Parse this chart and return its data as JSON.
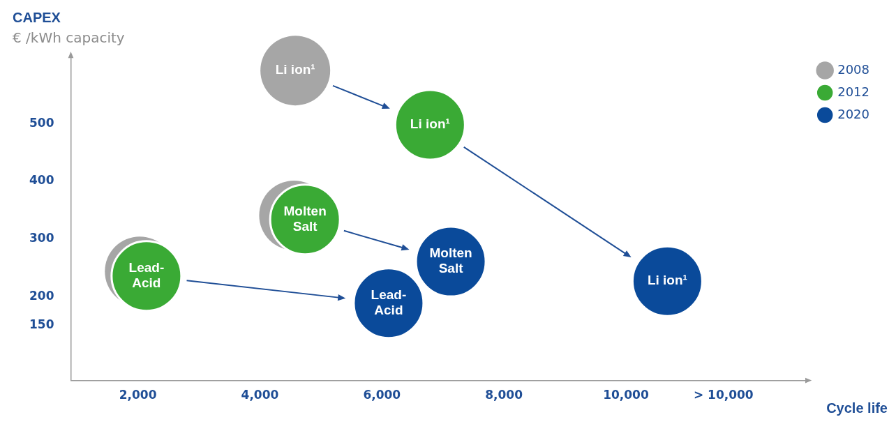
{
  "chart_data": {
    "type": "bubble",
    "ylabel": "CAPEX",
    "xlabel": "Cycle life",
    "annotations": [
      "€ /kWh capacity",
      {
        "text": "Li ion¹",
        "x": 4580,
        "y": 592
      },
      {
        "text": "Li ion¹",
        "x": 6790,
        "y": 498
      },
      {
        "text": "Molten Salt",
        "x": 4740,
        "y": 334
      },
      {
        "text": "Lead-Acid",
        "x": 2140,
        "y": 236
      },
      {
        "text": "Li ion¹",
        "x": 10680,
        "y": 227
      },
      {
        "text": "Molten Salt",
        "x": 7130,
        "y": 261
      },
      {
        "text": "Lead-Acid",
        "x": 6110,
        "y": 189
      }
    ],
    "series": [
      {
        "name": "2008",
        "color": "#a6a6a6",
        "x": [
          4580,
          4560,
          2030
        ],
        "values": [
          592,
          341,
          244
        ],
        "sizes": [
          1,
          1,
          1
        ]
      },
      {
        "name": "2012",
        "color": "#3aaa35",
        "x": [
          6790,
          4740,
          2140
        ],
        "values": [
          498,
          334,
          236
        ],
        "sizes": [
          1,
          1,
          1
        ]
      },
      {
        "name": "2020",
        "color": "#0a4a9a",
        "x": [
          10680,
          7130,
          6110
        ],
        "values": [
          227,
          261,
          189
        ],
        "sizes": [
          1,
          1,
          1
        ]
      }
    ],
    "xlim": [
      900,
      13000
    ],
    "xticks": [
      {
        "value": 2000,
        "label": "2,000"
      },
      {
        "value": 4000,
        "label": "4,000"
      },
      {
        "value": 6000,
        "label": "6,000"
      },
      {
        "value": 8000,
        "label": "8,000"
      },
      {
        "value": 10000,
        "label": "10,000"
      },
      {
        "value": 11600,
        "label": "> 10,000"
      }
    ],
    "ylim": [
      55,
      620
    ],
    "yticks": [
      150,
      200,
      300,
      400,
      500
    ],
    "grid": false,
    "legend": "top right",
    "marker": "circle"
  }
}
